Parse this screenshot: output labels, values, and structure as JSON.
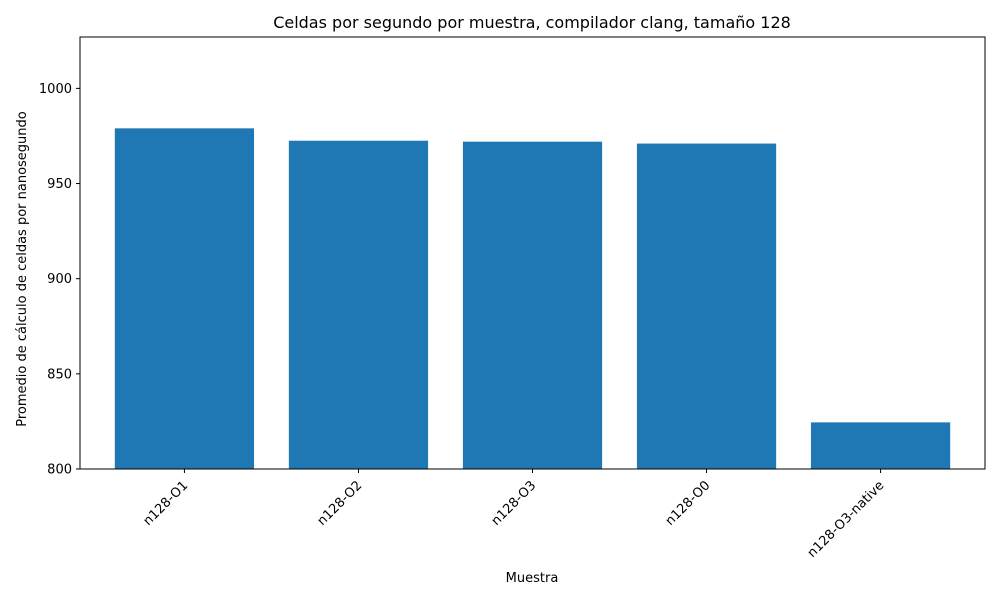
{
  "chart_data": {
    "type": "bar",
    "title": "Celdas por segundo por muestra, compilador clang, tamaño 128",
    "xlabel": "Muestra",
    "ylabel": "Promedio de cálculo de celdas por nanosegundo",
    "categories": [
      "n128-O1",
      "n128-O2",
      "n128-O3",
      "n128-O0",
      "n128-O3-native"
    ],
    "values": [
      979,
      972.5,
      972,
      971,
      824.5
    ],
    "ylim": [
      800,
      1027
    ],
    "yticks": [
      800,
      850,
      900,
      950,
      1000
    ],
    "bar_color": "#1f77b4",
    "grid": false,
    "xtick_rotation_deg": 45
  }
}
